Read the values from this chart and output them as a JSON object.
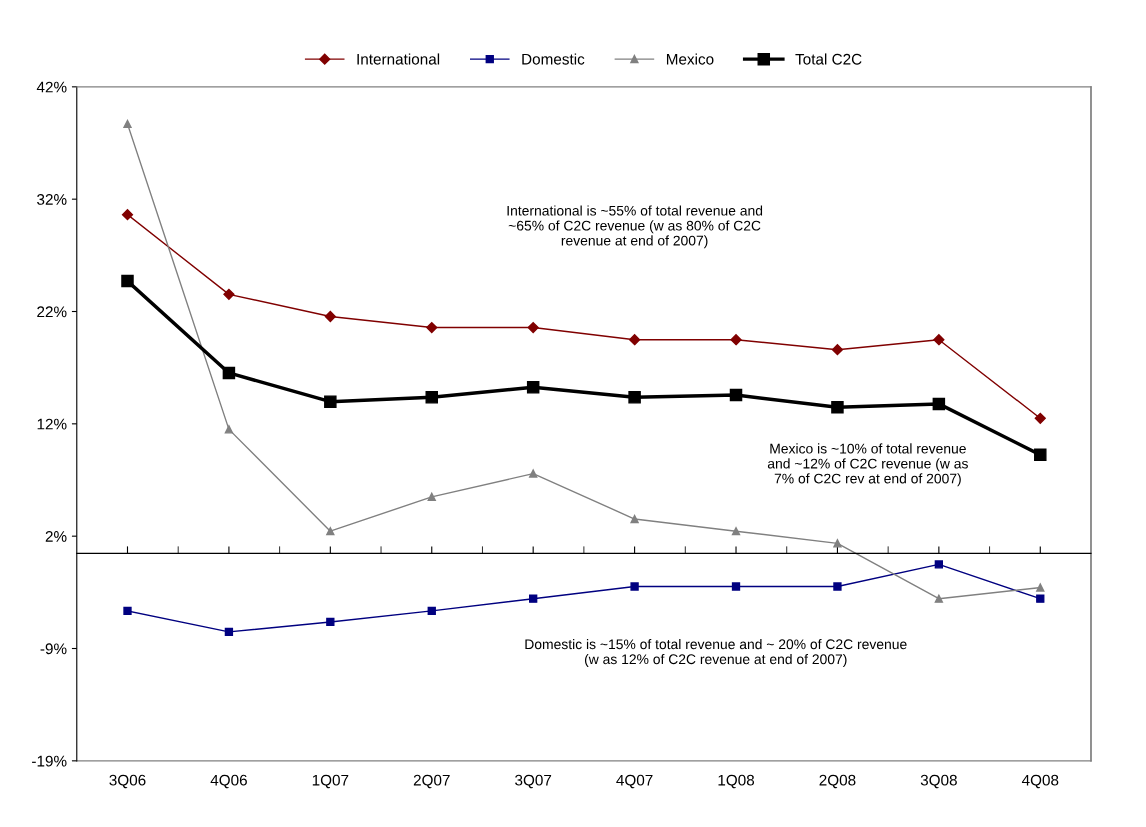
{
  "chart_data": {
    "type": "line",
    "categories": [
      "3Q06",
      "4Q06",
      "1Q07",
      "2Q07",
      "3Q07",
      "4Q07",
      "1Q08",
      "2Q08",
      "3Q08",
      "4Q08"
    ],
    "series": [
      {
        "name": "International",
        "color": "#800000",
        "marker": "diamond",
        "values": [
          30.6,
          23.4,
          21.4,
          20.4,
          20.4,
          19.3,
          19.3,
          18.4,
          19.3,
          12.2
        ]
      },
      {
        "name": "Domestic",
        "color": "#000080",
        "marker": "square",
        "values": [
          -5.2,
          -7.1,
          -6.2,
          -5.2,
          -4.1,
          -3.0,
          -3.0,
          -3.0,
          -1.0,
          -4.1
        ]
      },
      {
        "name": "Mexico",
        "color": "#808080",
        "marker": "triangle",
        "values": [
          38.8,
          11.2,
          2.0,
          5.1,
          7.2,
          3.1,
          2.0,
          0.9,
          -4.1,
          -3.1
        ]
      },
      {
        "name": "Total C2C",
        "color": "#000000",
        "marker": "square",
        "values": [
          24.6,
          16.3,
          13.7,
          14.1,
          15.0,
          14.1,
          14.3,
          13.2,
          13.5,
          8.9
        ]
      }
    ],
    "ylim": [
      -18.75,
      42.15
    ],
    "yticks": [
      {
        "value": -18.75,
        "label": "-19%"
      },
      {
        "value": -8.6,
        "label": "-9%"
      },
      {
        "value": 1.55,
        "label": "2%"
      },
      {
        "value": 11.7,
        "label": "12%"
      },
      {
        "value": 21.85,
        "label": "22%"
      },
      {
        "value": 32,
        "label": "32%"
      },
      {
        "value": 42.15,
        "label": "42%"
      }
    ],
    "annotations": [
      "International is ~55% of total revenue and\n~65% of C2C revenue (w as 80% of C2C\nrevenue at end of 2007)",
      "Mexico is ~10% of total revenue\nand ~12% of C2C revenue (w as\n7% of C2C rev at end of 2007)",
      "Domestic is ~15% of total revenue and ~ 20% of C2C revenue\n(w as 12% of C2C revenue at end of 2007)"
    ],
    "legend": "top",
    "grid": false
  }
}
